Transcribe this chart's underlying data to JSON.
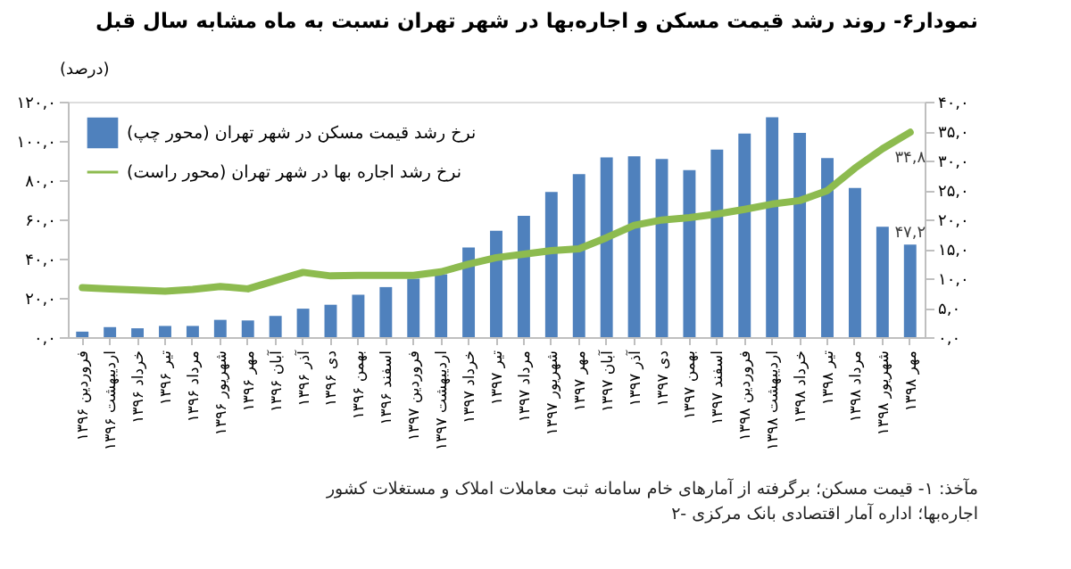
{
  "chart_data": {
    "type": "bar",
    "title": "نمودار۶- روند رشد قیمت مسکن و اجاره‌بها در شهر تهران نسبت به ماه مشابه سال قبل",
    "ylabel": "(درصد)",
    "categories": [
      "فروردین ۱۳۹۶",
      "اردیبهشت ۱۳۹۶",
      "خرداد ۱۳۹۶",
      "تیر ۱۳۹۶",
      "مرداد ۱۳۹۶",
      "شهریور ۱۳۹۶",
      "مهر ۱۳۹۶",
      "آبان ۱۳۹۶",
      "آذر ۱۳۹۶",
      "دی ۱۳۹۶",
      "بهمن ۱۳۹۶",
      "اسفند ۱۳۹۶",
      "فروردین ۱۳۹۷",
      "اردیبهشت ۱۳۹۷",
      "خرداد ۱۳۹۷",
      "تیر ۱۳۹۷",
      "مرداد ۱۳۹۷",
      "شهریور ۱۳۹۷",
      "مهر ۱۳۹۷",
      "آبان ۱۳۹۷",
      "آذر ۱۳۹۷",
      "دی ۱۳۹۷",
      "بهمن ۱۳۹۷",
      "اسفند ۱۳۹۷",
      "فروردین ۱۳۹۸",
      "اردیبهشت ۱۳۹۸",
      "خرداد ۱۳۹۸",
      "تیر ۱۳۹۸",
      "مرداد ۱۳۹۸",
      "شهریور ۱۳۹۸",
      "مهر ۱۳۹۸"
    ],
    "series": [
      {
        "name": "نرخ رشد قیمت مسکن در شهر تهران (محور چپ)",
        "color": "#4f81bd",
        "values": [
          2.8,
          5.1,
          4.5,
          5.7,
          5.7,
          8.8,
          8.5,
          10.8,
          14.5,
          16.5,
          21.6,
          25.5,
          29.8,
          32,
          45.7,
          54.2,
          61.8,
          74,
          83.1,
          91.6,
          92.2,
          90.8,
          85.1,
          95.6,
          103.8,
          112.1,
          104.1,
          91.3,
          76,
          56.2,
          47.2
        ],
        "value_labels": [
          null,
          null,
          null,
          null,
          null,
          null,
          null,
          null,
          null,
          null,
          null,
          null,
          null,
          null,
          null,
          null,
          null,
          null,
          null,
          null,
          null,
          null,
          null,
          null,
          null,
          null,
          null,
          null,
          null,
          null,
          "۴۷,۲"
        ]
      },
      {
        "name": "نرخ رشد اجاره بها در شهر تهران (محور راست)",
        "type": "line",
        "axis": "y2",
        "color": "#8dbb4f",
        "values": [
          8.4,
          8.2,
          8,
          7.8,
          8.1,
          8.6,
          8.2,
          9.6,
          11,
          10.4,
          10.5,
          10.5,
          10.5,
          11.1,
          12.4,
          13.5,
          14.1,
          14.7,
          15,
          16.9,
          19,
          19.9,
          20.3,
          20.9,
          21.7,
          22.6,
          23.2,
          24.9,
          28.7,
          32,
          34.8
        ],
        "value_labels": [
          null,
          null,
          null,
          null,
          null,
          null,
          null,
          null,
          null,
          null,
          null,
          null,
          null,
          null,
          null,
          null,
          null,
          null,
          null,
          null,
          null,
          null,
          null,
          null,
          null,
          null,
          null,
          null,
          null,
          null,
          "۳۴,۸"
        ]
      }
    ],
    "ylim": [
      0,
      120
    ],
    "yticks": [
      {
        "value": 0,
        "label": "۰,۰"
      },
      {
        "value": 20,
        "label": "۲۰,۰"
      },
      {
        "value": 40,
        "label": "۴۰,۰"
      },
      {
        "value": 60,
        "label": "۶۰,۰"
      },
      {
        "value": 80,
        "label": "۸۰,۰"
      },
      {
        "value": 100,
        "label": "۱۰۰,۰"
      },
      {
        "value": 120,
        "label": "۱۲۰,۰"
      }
    ],
    "y2lim": [
      0,
      40
    ],
    "y2ticks": [
      {
        "value": 0,
        "label": "۰,۰"
      },
      {
        "value": 5,
        "label": "۵,۰"
      },
      {
        "value": 10,
        "label": "۱۰,۰"
      },
      {
        "value": 15,
        "label": "۱۵,۰"
      },
      {
        "value": 20,
        "label": "۲۰,۰"
      },
      {
        "value": 25,
        "label": "۲۵,۰"
      },
      {
        "value": 30,
        "label": "۳۰,۰"
      },
      {
        "value": 35,
        "label": "۳۵,۰"
      },
      {
        "value": 40,
        "label": "۴۰,۰"
      }
    ],
    "legend": "top left",
    "grid": false,
    "line_style": "solid",
    "marker": "none",
    "annotations": [
      "مآخذ: ۱- قیمت مسکن؛ برگرفته از آمارهای خام سامانه ثبت معاملات املاک و مستغلات کشور",
      "۲- اجاره‌بها؛ اداره آمار اقتصادی بانک مرکزی"
    ]
  }
}
